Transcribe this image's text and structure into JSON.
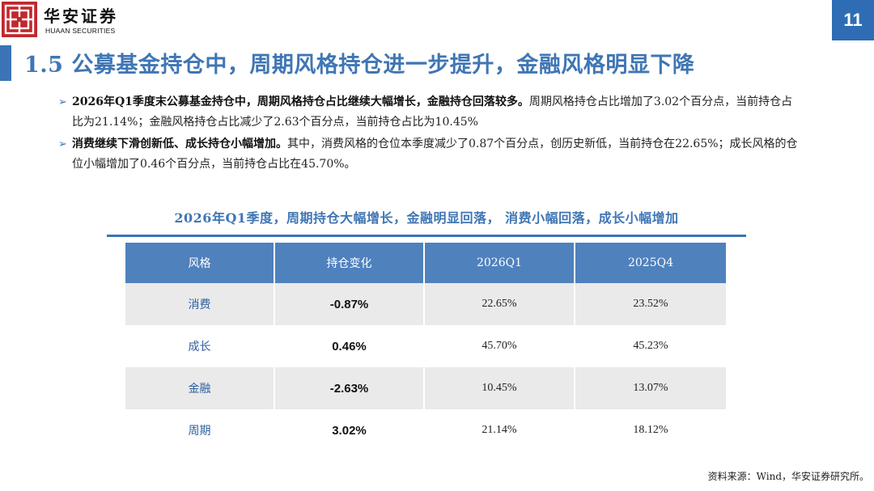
{
  "header": {
    "logo_icon": "huaan-seal-icon",
    "brand_cn": "华安证券",
    "brand_en": "HUAAN SECURITIES",
    "page_number": "11",
    "accent_color": "#3f76b4",
    "brand_color": "#c0282d"
  },
  "title": "1.5 公募基金持仓中，周期风格持仓进一步提升，金融风格明显下降",
  "bullets": [
    {
      "bold": "2026年Q1季度末公募基金持仓中，周期风格持仓占比继续大幅增长，金融持仓回落较多。",
      "text": "周期风格持仓占比增加了3.02个百分点，当前持仓占比为21.14%；金融风格持仓占比减少了2.63个百分点，当前持仓占比为10.45%"
    },
    {
      "bold": "消费继续下滑创新低、成长持仓小幅增加。",
      "text": "其中，消费风格的仓位本季度减少了0.87个百分点，创历史新低，当前持仓在22.65%；成长风格的仓位小幅增加了0.46个百分点，当前持仓占比在45.70%。"
    }
  ],
  "table": {
    "title": "2026年Q1季度，周期持仓大幅增长，金融明显回落， 消费小幅回落，成长小幅增加",
    "headers": [
      "风格",
      "持仓变化",
      "2026Q1",
      "2025Q4"
    ],
    "rows": [
      [
        "消费",
        "-0.87%",
        "22.65%",
        "23.52%"
      ],
      [
        "成长",
        "0.46%",
        "45.70%",
        "45.23%"
      ],
      [
        "金融",
        "-2.63%",
        "10.45%",
        "13.07%"
      ],
      [
        "周期",
        "3.02%",
        "21.14%",
        "18.12%"
      ]
    ]
  },
  "source": "资料来源：Wind，华安证券研究所。"
}
